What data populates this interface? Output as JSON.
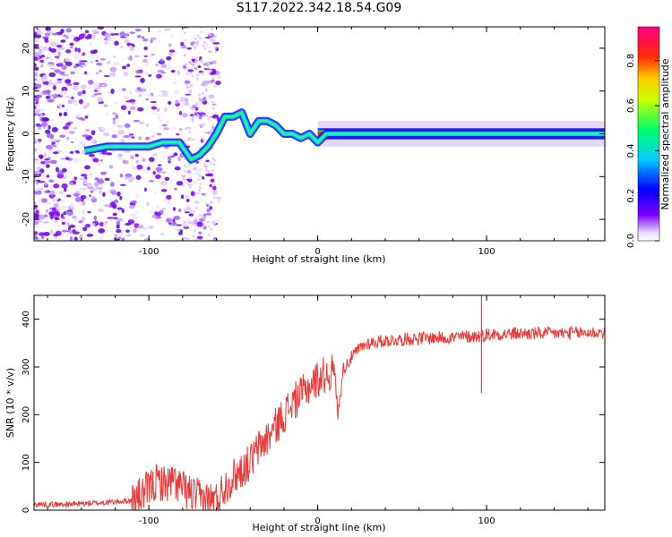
{
  "title": "S117.2022.342.18.54.G09",
  "chart_data": [
    {
      "type": "heatmap",
      "xlabel": "Height of straight line (km)",
      "ylabel": "Frequency (Hz)",
      "xlim": [
        -168,
        170
      ],
      "ylim": [
        -25,
        25
      ],
      "xticks": [
        -100,
        0,
        100
      ],
      "yticks": [
        -20,
        -10,
        0,
        10,
        20
      ],
      "colorbar": {
        "label": "Normalized spectral amplitude",
        "range": [
          0,
          0.95
        ],
        "ticks": [
          0.0,
          0.2,
          0.4,
          0.6,
          0.8
        ]
      },
      "ridge": {
        "description_points_x": [
          -138,
          -125,
          -110,
          -100,
          -92,
          -82,
          -75,
          -70,
          -65,
          -60,
          -55,
          -50,
          -45,
          -40,
          -35,
          -30,
          -25,
          -20,
          -15,
          -10,
          -5,
          0,
          5,
          10,
          20,
          50,
          100,
          170
        ],
        "frequency_y": [
          -4,
          -3,
          -3,
          -3,
          -2,
          -2,
          -6,
          -5,
          -3,
          0,
          4,
          4,
          5,
          0,
          3,
          3,
          2,
          0,
          0,
          -1,
          0,
          -2,
          0,
          0,
          0,
          0,
          0,
          0
        ]
      }
    },
    {
      "type": "line",
      "xlabel": "Height of straight line (km)",
      "ylabel": "SNR (10 * v/v)",
      "xlim": [
        -168,
        170
      ],
      "ylim": [
        0,
        450
      ],
      "xticks": [
        -100,
        0,
        100
      ],
      "yticks": [
        0,
        100,
        200,
        300,
        400
      ],
      "color": "#e83a3a",
      "series": [
        {
          "x": [
            -168,
            -150,
            -130,
            -110,
            -105,
            -100,
            -95,
            -90,
            -85,
            -80,
            -75,
            -70,
            -65,
            -60,
            -55,
            -50,
            -45,
            -40,
            -35,
            -30,
            -25,
            -20,
            -15,
            -10,
            -5,
            0,
            5,
            10,
            12,
            15,
            20,
            25,
            30,
            40,
            60,
            80,
            95,
            97,
            100,
            120,
            140,
            160,
            170
          ],
          "values": [
            12,
            12,
            15,
            20,
            30,
            45,
            60,
            55,
            60,
            45,
            35,
            25,
            22,
            22,
            50,
            70,
            85,
            100,
            130,
            150,
            175,
            200,
            225,
            240,
            260,
            275,
            285,
            290,
            200,
            295,
            320,
            340,
            350,
            355,
            360,
            362,
            365,
            365,
            368,
            370,
            370,
            372,
            372
          ]
        }
      ]
    }
  ]
}
